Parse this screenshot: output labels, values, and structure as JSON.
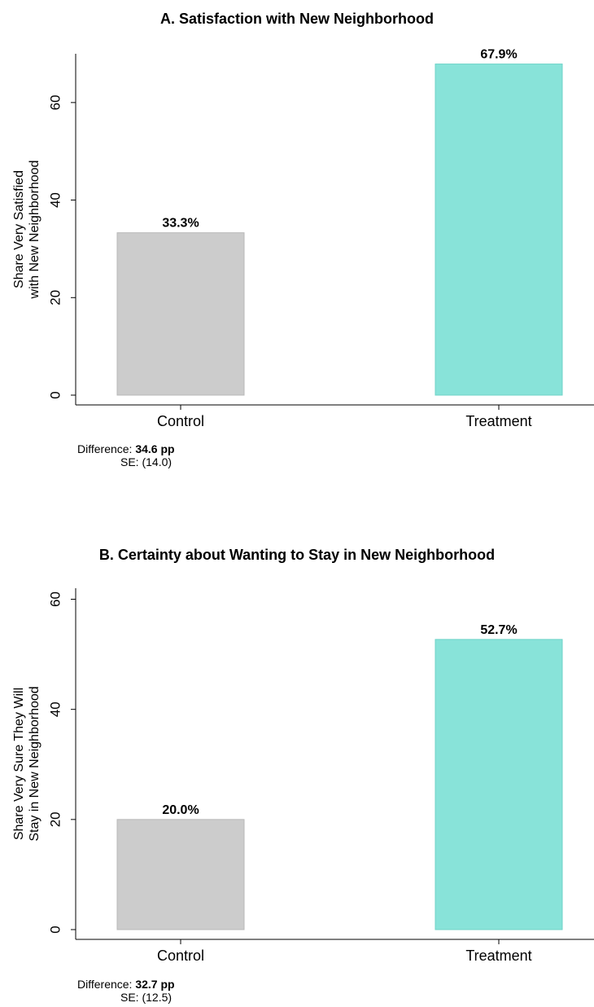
{
  "chart_data": [
    {
      "type": "bar",
      "title": "A. Satisfaction with New Neighborhood",
      "ylabel_lines": [
        "Share Very Satisfied",
        "with New Neighborhood"
      ],
      "xlabel": "",
      "categories": [
        "Control",
        "Treatment"
      ],
      "values": [
        33.3,
        67.9
      ],
      "data_labels": [
        "33.3%",
        "67.9%"
      ],
      "colors": [
        "#cccccc",
        "#88e3d9"
      ],
      "yticks": [
        0,
        20,
        40,
        60
      ],
      "ylim": [
        0,
        70
      ],
      "grid": false,
      "notes": {
        "difference_label": "Difference:",
        "difference_value": "34.6 pp",
        "se_label": "SE:",
        "se_value": "(14.0)"
      }
    },
    {
      "type": "bar",
      "title": "B. Certainty about Wanting to Stay in New Neighborhood",
      "ylabel_lines": [
        "Share Very Sure They Will",
        "Stay in New Neighborhood"
      ],
      "xlabel": "",
      "categories": [
        "Control",
        "Treatment"
      ],
      "values": [
        20.0,
        52.7
      ],
      "data_labels": [
        "20.0%",
        "52.7%"
      ],
      "colors": [
        "#cccccc",
        "#88e3d9"
      ],
      "yticks": [
        0,
        20,
        40,
        60
      ],
      "ylim": [
        0,
        62
      ],
      "grid": false,
      "notes": {
        "difference_label": "Difference:",
        "difference_value": "32.7 pp",
        "se_label": "SE:",
        "se_value": "(12.5)"
      }
    }
  ]
}
